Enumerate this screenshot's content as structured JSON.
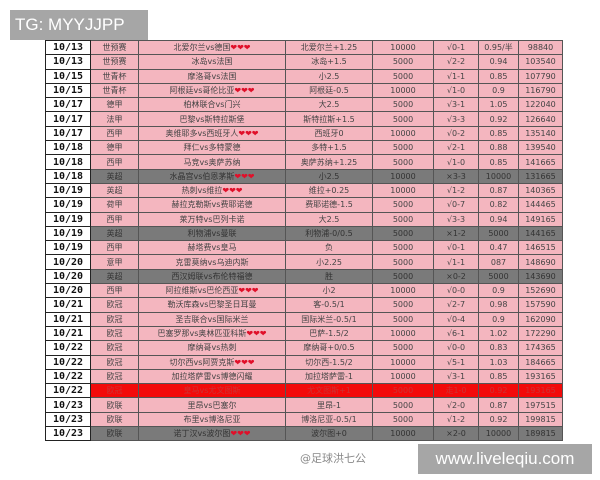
{
  "watermarks": {
    "top": "TG: MYYJJPP",
    "bottom": "www.liveleqiu.com",
    "weibo": "@足球洪七公"
  },
  "colors": {
    "row_pink": "#f4b6bf",
    "row_gray": "#7a7a7a",
    "row_red": "#f20a0a",
    "hearts": "#e0102a"
  },
  "hearts_text": "❤❤❤",
  "rows": [
    {
      "date": "10/13",
      "league": "世预赛",
      "match": "北爱尔兰vs德国",
      "hearts": true,
      "bet": "北爱尔兰+1.25",
      "amount": "10000",
      "result": "√0-1",
      "odds": "0.95/半",
      "total": "98840",
      "style": "pink"
    },
    {
      "date": "10/13",
      "league": "世预赛",
      "match": "冰岛vs法国",
      "hearts": false,
      "bet": "冰岛+1.5",
      "amount": "5000",
      "result": "√2-2",
      "odds": "0.94",
      "total": "103540",
      "style": "pink"
    },
    {
      "date": "10/15",
      "league": "世青杯",
      "match": "摩洛哥vs法国",
      "hearts": false,
      "bet": "小2.5",
      "amount": "5000",
      "result": "√1-1",
      "odds": "0.85",
      "total": "107790",
      "style": "pink"
    },
    {
      "date": "10/15",
      "league": "世青杯",
      "match": "阿根廷vs哥伦比亚",
      "hearts": true,
      "bet": "阿根廷-0.5",
      "amount": "10000",
      "result": "√1-0",
      "odds": "0.9",
      "total": "116790",
      "style": "pink"
    },
    {
      "date": "10/17",
      "league": "德甲",
      "match": "柏林联合vs门兴",
      "hearts": false,
      "bet": "大2.5",
      "amount": "5000",
      "result": "√3-1",
      "odds": "1.05",
      "total": "122040",
      "style": "pink"
    },
    {
      "date": "10/17",
      "league": "法甲",
      "match": "巴黎vs斯特拉斯堡",
      "hearts": false,
      "bet": "斯特拉斯+1.5",
      "amount": "5000",
      "result": "√3-3",
      "odds": "0.92",
      "total": "126640",
      "style": "pink"
    },
    {
      "date": "10/17",
      "league": "西甲",
      "match": "奥维耶多vs西班牙人",
      "hearts": true,
      "bet": "西班牙0",
      "amount": "10000",
      "result": "√0-2",
      "odds": "0.85",
      "total": "135140",
      "style": "pink"
    },
    {
      "date": "10/18",
      "league": "德甲",
      "match": "拜仁vs多特蒙德",
      "hearts": false,
      "bet": "多特+1.5",
      "amount": "5000",
      "result": "√2-1",
      "odds": "0.88",
      "total": "139540",
      "style": "pink"
    },
    {
      "date": "10/18",
      "league": "西甲",
      "match": "马竞vs奥萨苏纳",
      "hearts": false,
      "bet": "奥萨苏纳+1.25",
      "amount": "5000",
      "result": "√1-0",
      "odds": "0.85",
      "total": "141665",
      "style": "pink"
    },
    {
      "date": "10/18",
      "league": "英超",
      "match": "水晶宫vs伯恩茅斯",
      "hearts": true,
      "bet": "小2.5",
      "amount": "10000",
      "result": "×3-3",
      "odds": "10000",
      "total": "131665",
      "style": "gray"
    },
    {
      "date": "10/19",
      "league": "英超",
      "match": "热刺vs维拉",
      "hearts": true,
      "bet": "维拉+0.25",
      "amount": "10000",
      "result": "√1-2",
      "odds": "0.87",
      "total": "140365",
      "style": "pink"
    },
    {
      "date": "10/19",
      "league": "荷甲",
      "match": "赫拉克勒斯vs费耶诺德",
      "hearts": false,
      "bet": "费耶诺德-1.5",
      "amount": "5000",
      "result": "√0-7",
      "odds": "0.82",
      "total": "144465",
      "style": "pink"
    },
    {
      "date": "10/19",
      "league": "西甲",
      "match": "莱万特vs巴列卡诺",
      "hearts": false,
      "bet": "大2.5",
      "amount": "5000",
      "result": "√3-3",
      "odds": "0.94",
      "total": "149165",
      "style": "pink"
    },
    {
      "date": "10/19",
      "league": "英超",
      "match": "利物浦vs曼联",
      "hearts": false,
      "bet": "利物浦-0/0.5",
      "amount": "5000",
      "result": "×1-2",
      "odds": "5000",
      "total": "144165",
      "style": "gray"
    },
    {
      "date": "10/19",
      "league": "西甲",
      "match": "赫塔费vs皇马",
      "hearts": false,
      "bet": "负",
      "amount": "5000",
      "result": "√0-1",
      "odds": "0.47",
      "total": "146515",
      "style": "pink"
    },
    {
      "date": "10/20",
      "league": "意甲",
      "match": "克雷莫纳vs乌迪内斯",
      "hearts": false,
      "bet": "小2.25",
      "amount": "5000",
      "result": "√1-1",
      "odds": "087",
      "total": "148690",
      "style": "pink"
    },
    {
      "date": "10/20",
      "league": "英超",
      "match": "西汉姆联vs布伦特福德",
      "hearts": false,
      "bet": "胜",
      "amount": "5000",
      "result": "×0-2",
      "odds": "5000",
      "total": "143690",
      "style": "gray"
    },
    {
      "date": "10/20",
      "league": "西甲",
      "match": "阿拉维斯vs巴伦西亚",
      "hearts": true,
      "bet": "小2",
      "amount": "10000",
      "result": "√0-0",
      "odds": "0.9",
      "total": "152690",
      "style": "pink"
    },
    {
      "date": "10/21",
      "league": "欧冠",
      "match": "勒沃库森vs巴黎圣日耳曼",
      "hearts": false,
      "bet": "客-0.5/1",
      "amount": "5000",
      "result": "√2-7",
      "odds": "0.98",
      "total": "157590",
      "style": "pink"
    },
    {
      "date": "10/21",
      "league": "欧冠",
      "match": "圣吉联合vs国际米兰",
      "hearts": false,
      "bet": "国际米兰-0.5/1",
      "amount": "5000",
      "result": "√0-4",
      "odds": "0.9",
      "total": "162090",
      "style": "pink"
    },
    {
      "date": "10/21",
      "league": "欧冠",
      "match": "巴塞罗那vs奥林匹亚科斯",
      "hearts": true,
      "bet": "巴萨-1.5/2",
      "amount": "10000",
      "result": "√6-1",
      "odds": "1.02",
      "total": "172290",
      "style": "pink"
    },
    {
      "date": "10/22",
      "league": "欧冠",
      "match": "摩纳哥vs热刺",
      "hearts": false,
      "bet": "摩纳哥+0/0.5",
      "amount": "5000",
      "result": "√0-0",
      "odds": "0.83",
      "total": "174365",
      "style": "pink"
    },
    {
      "date": "10/22",
      "league": "欧冠",
      "match": "切尔西vs阿贾克斯",
      "hearts": true,
      "bet": "切尔西-1.5/2",
      "amount": "10000",
      "result": "√5-1",
      "odds": "1.03",
      "total": "184665",
      "style": "pink"
    },
    {
      "date": "10/22",
      "league": "欧冠",
      "match": "加拉塔萨雷vs博德闪耀",
      "hearts": false,
      "bet": "加拉塔萨雷-1",
      "amount": "10000",
      "result": "√3-1",
      "odds": "0.85",
      "total": "193165",
      "style": "pink"
    },
    {
      "date": "10/22",
      "league": "欧冠",
      "match": "皇马vs尤文图斯",
      "hearts": false,
      "bet": "尤文图斯+1",
      "amount": "5000",
      "result": "走1-0",
      "odds": "0.92",
      "total": "193165",
      "style": "red"
    },
    {
      "date": "10/23",
      "league": "欧联",
      "match": "里昂vs巴塞尔",
      "hearts": false,
      "bet": "里昂-1",
      "amount": "5000",
      "result": "√2-0",
      "odds": "0.87",
      "total": "197515",
      "style": "pink"
    },
    {
      "date": "10/23",
      "league": "欧联",
      "match": "布里vs博洛尼亚",
      "hearts": false,
      "bet": "博洛尼亚-0.5/1",
      "amount": "5000",
      "result": "√1-2",
      "odds": "0.92",
      "total": "199815",
      "style": "pink"
    },
    {
      "date": "10/23",
      "league": "欧联",
      "match": "诺丁汉vs波尔图",
      "hearts": true,
      "bet": "波尔图+0",
      "amount": "10000",
      "result": "×2-0",
      "odds": "10000",
      "total": "189815",
      "style": "gray"
    }
  ]
}
